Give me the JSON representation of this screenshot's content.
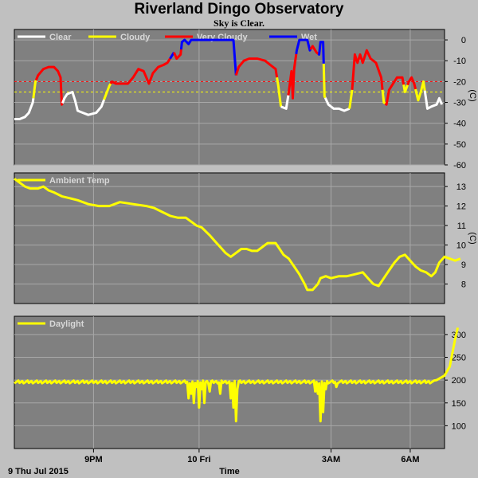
{
  "title": "Riverland Dingo Observatory",
  "subtitle": "Sky is Clear.",
  "colors": {
    "panel_bg": "#808080",
    "grid": "#a8a8a8",
    "clear": "#ffffff",
    "cloudy": "#ffff00",
    "very_cloudy": "#ff0000",
    "wet": "#0000ff",
    "ambient": "#ffff00",
    "daylight": "#ffff00",
    "threshold_very_cloudy": "#ff0000",
    "threshold_cloudy": "#ffff00"
  },
  "x_axis": {
    "label": "Time",
    "start_label": "9 Thu Jul 2015",
    "ticks": [
      {
        "label": "9PM",
        "hours": 3
      },
      {
        "label": "10 Fri",
        "hours": 7
      },
      {
        "label": "3AM",
        "hours": 12
      },
      {
        "label": "6AM",
        "hours": 15
      }
    ],
    "range_hours": [
      0,
      16.3
    ]
  },
  "chart_data": [
    {
      "type": "line",
      "name": "sky",
      "unit": "(C)",
      "ylim": [
        -60,
        5
      ],
      "yticks": [
        0,
        -10,
        -20,
        -30,
        -40,
        -50,
        -60
      ],
      "thresholds": [
        {
          "value": -20,
          "color_key": "threshold_very_cloudy"
        },
        {
          "value": -25,
          "color_key": "threshold_cloudy"
        }
      ],
      "legend": [
        {
          "label": "Clear",
          "color_key": "clear"
        },
        {
          "label": "Cloudy",
          "color_key": "cloudy"
        },
        {
          "label": "Very Cloudy",
          "color_key": "very_cloudy"
        },
        {
          "label": "Wet",
          "color_key": "wet"
        }
      ],
      "points": [
        [
          0,
          -38
        ],
        [
          0.2,
          -38
        ],
        [
          0.4,
          -37
        ],
        [
          0.55,
          -35
        ],
        [
          0.7,
          -30
        ],
        [
          0.75,
          -25
        ],
        [
          0.8,
          -20
        ],
        [
          0.9,
          -17
        ],
        [
          1.1,
          -14
        ],
        [
          1.3,
          -13
        ],
        [
          1.5,
          -13
        ],
        [
          1.65,
          -15
        ],
        [
          1.75,
          -18
        ],
        [
          1.8,
          -31
        ],
        [
          1.9,
          -28
        ],
        [
          2.0,
          -26
        ],
        [
          2.2,
          -25
        ],
        [
          2.3,
          -29
        ],
        [
          2.4,
          -34
        ],
        [
          2.6,
          -35
        ],
        [
          2.8,
          -36
        ],
        [
          3.1,
          -35
        ],
        [
          3.3,
          -32
        ],
        [
          3.45,
          -27
        ],
        [
          3.6,
          -22
        ],
        [
          3.7,
          -20
        ],
        [
          3.85,
          -21
        ],
        [
          4.1,
          -21
        ],
        [
          4.3,
          -21
        ],
        [
          4.5,
          -18
        ],
        [
          4.7,
          -14
        ],
        [
          4.9,
          -15
        ],
        [
          5.1,
          -21
        ],
        [
          5.25,
          -16
        ],
        [
          5.45,
          -13
        ],
        [
          5.65,
          -12
        ],
        [
          5.8,
          -11
        ],
        [
          5.95,
          -8
        ],
        [
          6.05,
          -6
        ],
        [
          6.15,
          -9
        ],
        [
          6.3,
          -7
        ],
        [
          6.35,
          -1
        ],
        [
          6.45,
          0
        ],
        [
          6.6,
          -2
        ],
        [
          6.7,
          0
        ],
        [
          6.9,
          0
        ],
        [
          7.3,
          0
        ],
        [
          7.6,
          0
        ],
        [
          7.9,
          0
        ],
        [
          8.1,
          0
        ],
        [
          8.3,
          0
        ],
        [
          8.4,
          -17
        ],
        [
          8.5,
          -13
        ],
        [
          8.7,
          -10
        ],
        [
          8.9,
          -9
        ],
        [
          9.2,
          -9
        ],
        [
          9.5,
          -10
        ],
        [
          9.7,
          -12
        ],
        [
          9.9,
          -14
        ],
        [
          10.0,
          -22
        ],
        [
          10.1,
          -32
        ],
        [
          10.3,
          -33
        ],
        [
          10.4,
          -25
        ],
        [
          10.5,
          -15
        ],
        [
          10.55,
          -28
        ],
        [
          10.6,
          -14
        ],
        [
          10.7,
          -5
        ],
        [
          10.8,
          0
        ],
        [
          11.1,
          0
        ],
        [
          11.2,
          -5
        ],
        [
          11.3,
          -3
        ],
        [
          11.45,
          -6
        ],
        [
          11.55,
          -7
        ],
        [
          11.6,
          -1
        ],
        [
          11.7,
          -1
        ],
        [
          11.75,
          -27
        ],
        [
          11.9,
          -31
        ],
        [
          12.1,
          -33
        ],
        [
          12.3,
          -33
        ],
        [
          12.5,
          -34
        ],
        [
          12.7,
          -33
        ],
        [
          12.8,
          -24
        ],
        [
          12.9,
          -7
        ],
        [
          13.0,
          -11
        ],
        [
          13.1,
          -7
        ],
        [
          13.2,
          -11
        ],
        [
          13.35,
          -5
        ],
        [
          13.5,
          -9
        ],
        [
          13.7,
          -11
        ],
        [
          13.9,
          -18
        ],
        [
          14.0,
          -30
        ],
        [
          14.1,
          -31
        ],
        [
          14.2,
          -24
        ],
        [
          14.35,
          -21
        ],
        [
          14.5,
          -18
        ],
        [
          14.7,
          -18
        ],
        [
          14.8,
          -25
        ],
        [
          14.95,
          -20
        ],
        [
          15.05,
          -18
        ],
        [
          15.15,
          -21
        ],
        [
          15.3,
          -29
        ],
        [
          15.4,
          -25
        ],
        [
          15.5,
          -20
        ],
        [
          15.65,
          -33
        ],
        [
          15.8,
          -32
        ],
        [
          16.0,
          -31
        ],
        [
          16.1,
          -28
        ],
        [
          16.2,
          -31
        ]
      ],
      "segments": [
        {
          "start": 0,
          "end": 0.72,
          "state": "clear"
        },
        {
          "start": 0.72,
          "end": 0.82,
          "state": "cloudy"
        },
        {
          "start": 0.82,
          "end": 1.82,
          "state": "very_cloudy"
        },
        {
          "start": 1.82,
          "end": 3.4,
          "state": "clear"
        },
        {
          "start": 3.4,
          "end": 3.65,
          "state": "cloudy"
        },
        {
          "start": 3.65,
          "end": 5.9,
          "state": "very_cloudy"
        },
        {
          "start": 5.9,
          "end": 6.05,
          "state": "wet"
        },
        {
          "start": 6.05,
          "end": 6.32,
          "state": "very_cloudy"
        },
        {
          "start": 6.32,
          "end": 8.4,
          "state": "wet"
        },
        {
          "start": 8.4,
          "end": 9.95,
          "state": "very_cloudy"
        },
        {
          "start": 9.95,
          "end": 10.1,
          "state": "cloudy"
        },
        {
          "start": 10.1,
          "end": 10.38,
          "state": "clear"
        },
        {
          "start": 10.38,
          "end": 10.68,
          "state": "very_cloudy"
        },
        {
          "start": 10.68,
          "end": 11.22,
          "state": "wet"
        },
        {
          "start": 11.22,
          "end": 11.52,
          "state": "very_cloudy"
        },
        {
          "start": 11.52,
          "end": 11.72,
          "state": "wet"
        },
        {
          "start": 11.72,
          "end": 11.78,
          "state": "cloudy"
        },
        {
          "start": 11.78,
          "end": 12.7,
          "state": "clear"
        },
        {
          "start": 12.7,
          "end": 12.8,
          "state": "cloudy"
        },
        {
          "start": 12.8,
          "end": 13.95,
          "state": "very_cloudy"
        },
        {
          "start": 13.95,
          "end": 14.05,
          "state": "cloudy"
        },
        {
          "start": 14.05,
          "end": 14.75,
          "state": "very_cloudy"
        },
        {
          "start": 14.75,
          "end": 14.9,
          "state": "cloudy"
        },
        {
          "start": 14.9,
          "end": 15.2,
          "state": "very_cloudy"
        },
        {
          "start": 15.2,
          "end": 15.55,
          "state": "cloudy"
        },
        {
          "start": 15.55,
          "end": 16.3,
          "state": "clear"
        }
      ]
    },
    {
      "type": "line",
      "name": "Ambient Temp",
      "unit": "(C)",
      "ylim": [
        7,
        13.7
      ],
      "yticks": [
        8,
        9,
        10,
        11,
        12,
        13
      ],
      "legend": [
        {
          "label": "Ambient Temp",
          "color_key": "ambient"
        }
      ],
      "points": [
        [
          0,
          13.4
        ],
        [
          0.2,
          13.2
        ],
        [
          0.4,
          13.0
        ],
        [
          0.6,
          12.9
        ],
        [
          0.9,
          12.9
        ],
        [
          1.1,
          13.0
        ],
        [
          1.3,
          12.8
        ],
        [
          1.5,
          12.7
        ],
        [
          1.8,
          12.5
        ],
        [
          2.1,
          12.4
        ],
        [
          2.4,
          12.3
        ],
        [
          2.8,
          12.1
        ],
        [
          3.2,
          12.0
        ],
        [
          3.6,
          12.0
        ],
        [
          4.0,
          12.2
        ],
        [
          4.5,
          12.1
        ],
        [
          5.0,
          12.0
        ],
        [
          5.3,
          11.9
        ],
        [
          5.6,
          11.7
        ],
        [
          5.9,
          11.5
        ],
        [
          6.2,
          11.4
        ],
        [
          6.5,
          11.4
        ],
        [
          6.7,
          11.2
        ],
        [
          6.9,
          11.0
        ],
        [
          7.1,
          10.9
        ],
        [
          7.4,
          10.5
        ],
        [
          7.6,
          10.2
        ],
        [
          7.8,
          9.9
        ],
        [
          8.0,
          9.6
        ],
        [
          8.2,
          9.4
        ],
        [
          8.4,
          9.6
        ],
        [
          8.6,
          9.8
        ],
        [
          8.8,
          9.8
        ],
        [
          9.0,
          9.7
        ],
        [
          9.2,
          9.7
        ],
        [
          9.4,
          9.9
        ],
        [
          9.6,
          10.1
        ],
        [
          9.9,
          10.1
        ],
        [
          10.0,
          9.9
        ],
        [
          10.2,
          9.5
        ],
        [
          10.4,
          9.3
        ],
        [
          10.6,
          8.9
        ],
        [
          10.8,
          8.5
        ],
        [
          11.0,
          8.0
        ],
        [
          11.1,
          7.7
        ],
        [
          11.3,
          7.7
        ],
        [
          11.5,
          8.0
        ],
        [
          11.6,
          8.3
        ],
        [
          11.8,
          8.4
        ],
        [
          12.0,
          8.3
        ],
        [
          12.3,
          8.4
        ],
        [
          12.6,
          8.4
        ],
        [
          12.9,
          8.5
        ],
        [
          13.2,
          8.6
        ],
        [
          13.4,
          8.3
        ],
        [
          13.6,
          8.0
        ],
        [
          13.8,
          7.9
        ],
        [
          14.0,
          8.3
        ],
        [
          14.2,
          8.7
        ],
        [
          14.4,
          9.1
        ],
        [
          14.6,
          9.4
        ],
        [
          14.8,
          9.5
        ],
        [
          15.0,
          9.2
        ],
        [
          15.2,
          8.9
        ],
        [
          15.4,
          8.7
        ],
        [
          15.6,
          8.6
        ],
        [
          15.8,
          8.4
        ],
        [
          15.95,
          8.6
        ],
        [
          16.1,
          9.1
        ],
        [
          16.3,
          9.4
        ],
        [
          16.5,
          9.3
        ],
        [
          16.7,
          9.2
        ],
        [
          16.9,
          9.3
        ]
      ]
    },
    {
      "type": "line",
      "name": "Daylight",
      "ylim": [
        50,
        340
      ],
      "yticks": [
        100,
        150,
        200,
        250,
        300
      ],
      "legend": [
        {
          "label": "Daylight",
          "color_key": "daylight"
        }
      ],
      "baseline": 196,
      "dips": [
        [
          6.6,
          160
        ],
        [
          6.7,
          170
        ],
        [
          6.8,
          150
        ],
        [
          6.9,
          185
        ],
        [
          7.0,
          140
        ],
        [
          7.1,
          180
        ],
        [
          7.2,
          150
        ],
        [
          7.4,
          175
        ],
        [
          7.8,
          170
        ],
        [
          8.2,
          160
        ],
        [
          8.3,
          140
        ],
        [
          8.4,
          110
        ],
        [
          8.45,
          180
        ],
        [
          11.4,
          175
        ],
        [
          11.5,
          170
        ],
        [
          11.6,
          110
        ],
        [
          11.7,
          130
        ],
        [
          11.8,
          180
        ],
        [
          12.2,
          185
        ]
      ],
      "end_rise": [
        [
          16.0,
          200
        ],
        [
          16.3,
          210
        ],
        [
          16.5,
          230
        ],
        [
          16.6,
          260
        ],
        [
          16.7,
          290
        ],
        [
          16.8,
          315
        ]
      ]
    }
  ]
}
